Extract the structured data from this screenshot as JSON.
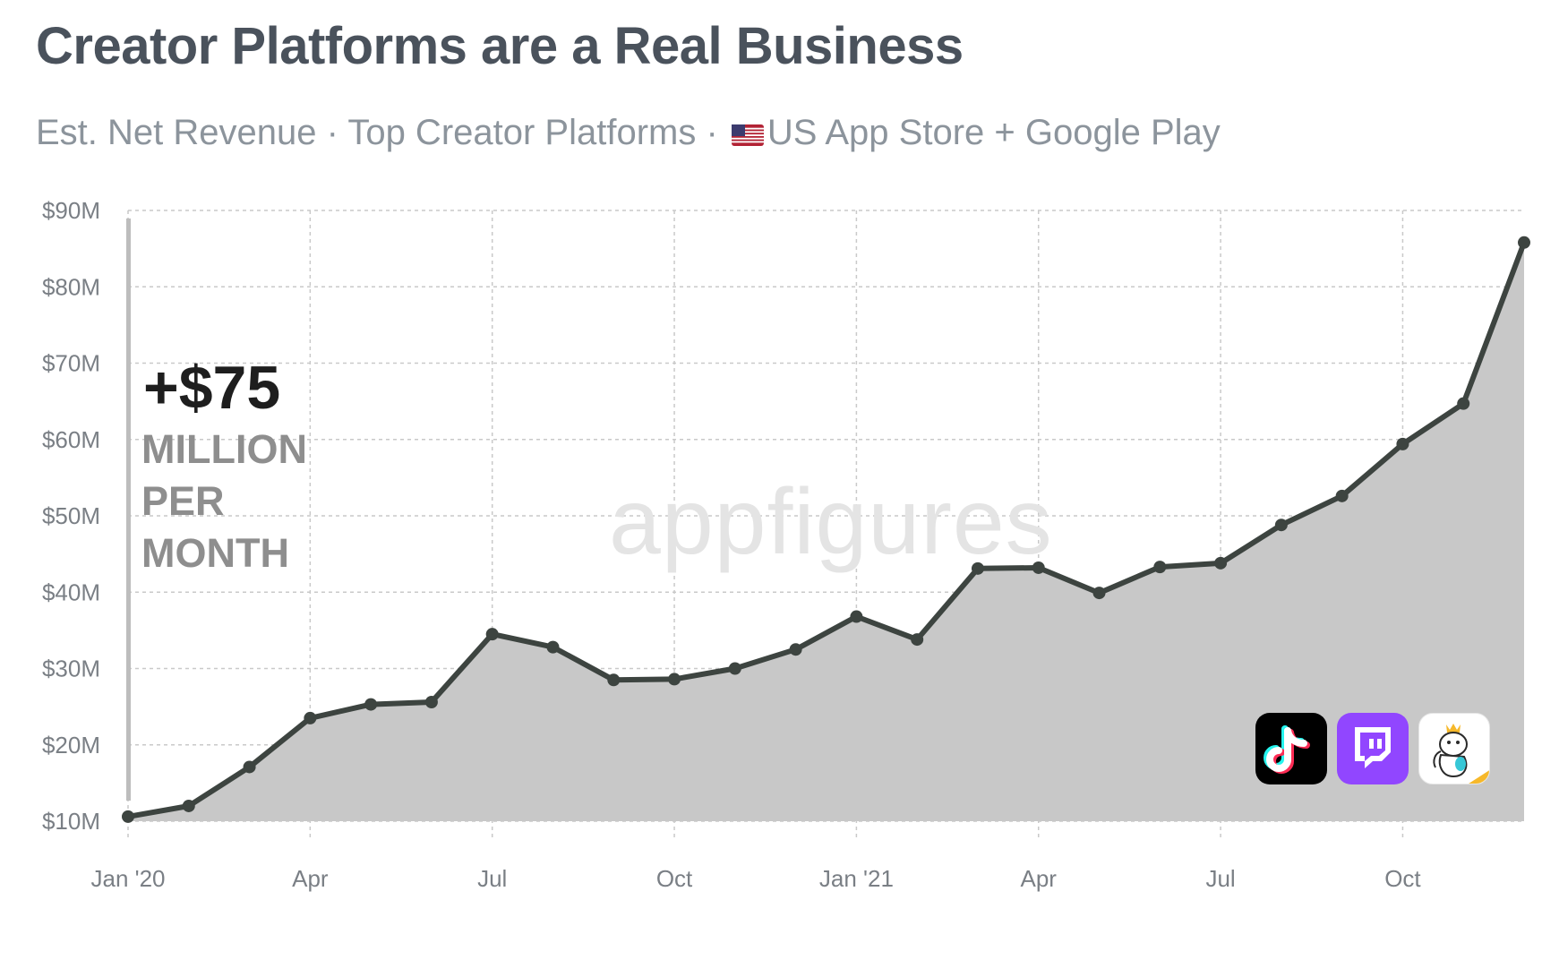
{
  "title": "Creator Platforms are a Real Business",
  "subtitle": {
    "before_flag": "Est. Net Revenue · Top Creator Platforms · ",
    "after_flag": "US App Store + Google Play"
  },
  "callout": {
    "value": "+$75",
    "line1": "MILLION",
    "line2": "PER",
    "line3": "MONTH"
  },
  "watermark": "appfigures",
  "icons": [
    "tiktok-icon",
    "twitch-icon",
    "bigo-live-icon"
  ],
  "colors": {
    "line": "#3d4440",
    "area": "#c8c8c8",
    "grid": "#c9c9c9",
    "title": "#4a525c",
    "subtitle": "#8c949c"
  },
  "chart_data": {
    "type": "area",
    "title": "Creator Platforms are a Real Business",
    "subtitle": "Est. Net Revenue · Top Creator Platforms · US App Store + Google Play",
    "x": [
      "2020-01",
      "2020-02",
      "2020-03",
      "2020-04",
      "2020-05",
      "2020-06",
      "2020-07",
      "2020-08",
      "2020-09",
      "2020-10",
      "2020-11",
      "2020-12",
      "2021-01",
      "2021-02",
      "2021-03",
      "2021-04",
      "2021-05",
      "2021-06",
      "2021-07",
      "2021-08",
      "2021-09",
      "2021-10",
      "2021-11",
      "2021-12"
    ],
    "series": [
      {
        "values": [
          10.6,
          12.0,
          17.1,
          23.5,
          25.3,
          25.6,
          34.5,
          32.8,
          28.5,
          28.6,
          30.0,
          32.5,
          36.8,
          33.8,
          43.1,
          43.2,
          39.9,
          43.3,
          43.8,
          48.8,
          52.6,
          59.4,
          64.7,
          85.8
        ]
      }
    ],
    "ylim": [
      10,
      90
    ],
    "y_ticks": [
      "$10M",
      "$20M",
      "$30M",
      "$40M",
      "$50M",
      "$60M",
      "$70M",
      "$80M",
      "$90M"
    ],
    "x_ticks": [
      "Jan '20",
      "Apr",
      "Jul",
      "Oct",
      "Jan '21",
      "Apr",
      "Jul",
      "Oct"
    ],
    "x_tick_positions": [
      "2020-01",
      "2020-04",
      "2020-07",
      "2020-10",
      "2021-01",
      "2021-04",
      "2021-07",
      "2021-10"
    ],
    "grid": true,
    "unit": "$M"
  }
}
